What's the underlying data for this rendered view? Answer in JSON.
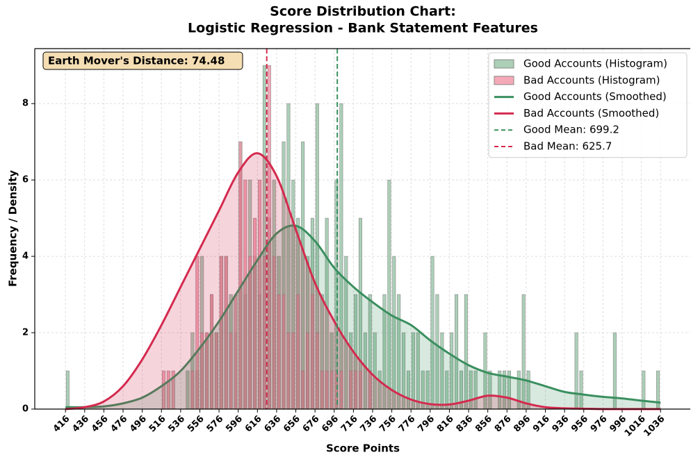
{
  "chart_data": {
    "type": "histogram",
    "title": [
      "Score Distribution Chart:",
      "Logistic Regression - Bank Statement Features"
    ],
    "xlabel": "Score Points",
    "ylabel": "Frequency / Density",
    "annotation": "Earth Mover's Distance: 74.48",
    "bins": [
      416,
      421,
      426,
      431,
      436,
      441,
      446,
      451,
      456,
      461,
      466,
      471,
      476,
      481,
      486,
      491,
      496,
      501,
      506,
      511,
      516,
      521,
      526,
      531,
      536,
      541,
      546,
      551,
      556,
      561,
      566,
      571,
      576,
      581,
      586,
      591,
      596,
      601,
      606,
      611,
      616,
      621,
      626,
      631,
      636,
      641,
      646,
      651,
      656,
      661,
      666,
      671,
      676,
      681,
      686,
      691,
      696,
      701,
      706,
      711,
      716,
      721,
      726,
      731,
      736,
      741,
      746,
      751,
      756,
      761,
      766,
      771,
      776,
      781,
      786,
      791,
      796,
      801,
      806,
      811,
      816,
      821,
      826,
      831,
      836,
      841,
      846,
      851,
      856,
      861,
      866,
      871,
      876,
      881,
      886,
      891,
      896,
      901,
      906,
      911,
      916,
      921,
      926,
      931,
      936,
      941,
      946,
      951,
      956,
      961,
      966,
      971,
      976,
      981,
      986,
      991,
      996,
      1001,
      1006,
      1011,
      1016,
      1021,
      1026,
      1031,
      1036
    ],
    "series": [
      {
        "name": "Good Accounts (Histogram)",
        "color": "#8fbf9f",
        "values": [
          1,
          0,
          0,
          0,
          0,
          0,
          0,
          0,
          0,
          0,
          0,
          0,
          0,
          0,
          0,
          0,
          0,
          0,
          0,
          0,
          0,
          0,
          0,
          0,
          0,
          1,
          2,
          1,
          4,
          2,
          3,
          2,
          4,
          4,
          3,
          2,
          7,
          3,
          6,
          4,
          3,
          9,
          5,
          6,
          4,
          7,
          8,
          6,
          5,
          7,
          4,
          5,
          8,
          3,
          5,
          2,
          6,
          8,
          4,
          2,
          3,
          5,
          2,
          3,
          2,
          1,
          3,
          6,
          4,
          3,
          2,
          1,
          2,
          2,
          1,
          1,
          4,
          3,
          2,
          1,
          2,
          3,
          1,
          3,
          1,
          1,
          0,
          2,
          1,
          0,
          1,
          1,
          1,
          0,
          1,
          3,
          1,
          0,
          0,
          0,
          0,
          0,
          0,
          0,
          0,
          0,
          2,
          1,
          0,
          0,
          0,
          0,
          0,
          0,
          2,
          0,
          0,
          0,
          0,
          0,
          1,
          0,
          0,
          1
        ]
      },
      {
        "name": "Bad Accounts (Histogram)",
        "color": "#f08ca0",
        "values": [
          0,
          0,
          0,
          0,
          0,
          0,
          0,
          0,
          0,
          0,
          0,
          0,
          0,
          0,
          0,
          0,
          0,
          0,
          0,
          0,
          1,
          1,
          1,
          0,
          0,
          0,
          1,
          4,
          2,
          2,
          3,
          2,
          4,
          4,
          2,
          3,
          7,
          6,
          4,
          5,
          6,
          4,
          9,
          4,
          3,
          3,
          2,
          2,
          3,
          1,
          2,
          3,
          2,
          1,
          1,
          1,
          1,
          1,
          0,
          1,
          1,
          1,
          0,
          1,
          0,
          0,
          0,
          0,
          0,
          0,
          0,
          0,
          0,
          0,
          0,
          0,
          0,
          0,
          0,
          0,
          0,
          0,
          0,
          0,
          0,
          0,
          0,
          0,
          0,
          0,
          0,
          0,
          0,
          0,
          0,
          0,
          0,
          0,
          0,
          0,
          0,
          0,
          0,
          0,
          0,
          0,
          0,
          0,
          0,
          0,
          0,
          0,
          0,
          0,
          0,
          0,
          0,
          0,
          0,
          0,
          0,
          0,
          0,
          0
        ]
      }
    ],
    "smoothed": {
      "x": [
        416,
        436,
        456,
        476,
        496,
        516,
        536,
        556,
        576,
        596,
        616,
        636,
        656,
        676,
        696,
        716,
        736,
        756,
        776,
        796,
        816,
        836,
        856,
        876,
        896,
        916,
        936,
        956,
        976,
        996,
        1016,
        1036
      ],
      "series": [
        {
          "name": "Good Accounts (Smoothed)",
          "color": "#3a8f5f",
          "values": [
            0.05,
            0.05,
            0.07,
            0.15,
            0.3,
            0.6,
            1.0,
            1.6,
            2.3,
            3.1,
            3.9,
            4.6,
            4.8,
            4.4,
            3.7,
            3.2,
            2.8,
            2.45,
            2.2,
            1.8,
            1.45,
            1.15,
            0.95,
            0.85,
            0.75,
            0.6,
            0.45,
            0.38,
            0.32,
            0.28,
            0.22,
            0.17
          ]
        },
        {
          "name": "Bad Accounts (Smoothed)",
          "color": "#d42a4e",
          "values": [
            0,
            0.05,
            0.2,
            0.6,
            1.3,
            2.2,
            3.2,
            4.2,
            5.2,
            6.2,
            6.7,
            6.1,
            4.7,
            3.3,
            2.3,
            1.5,
            0.9,
            0.5,
            0.25,
            0.13,
            0.12,
            0.22,
            0.35,
            0.3,
            0.15,
            0.05,
            0.02,
            0.01,
            0,
            0,
            0,
            0
          ]
        }
      ]
    },
    "mean_lines": [
      {
        "name": "Good Mean: 699.2",
        "value": 699.2,
        "color": "#3a8f5f"
      },
      {
        "name": "Bad Mean: 625.7",
        "value": 625.7,
        "color": "#d42a4e"
      }
    ],
    "xlim": [
      384,
      1067
    ],
    "ylim": [
      0,
      9.44
    ],
    "xticks": [
      416,
      436,
      456,
      476,
      496,
      516,
      536,
      556,
      576,
      596,
      616,
      636,
      656,
      676,
      696,
      716,
      736,
      756,
      776,
      796,
      816,
      836,
      856,
      876,
      896,
      916,
      936,
      956,
      976,
      996,
      1016,
      1036
    ],
    "yticks": [
      0,
      2,
      4,
      6,
      8
    ],
    "grid": true,
    "legend": "upper right"
  }
}
